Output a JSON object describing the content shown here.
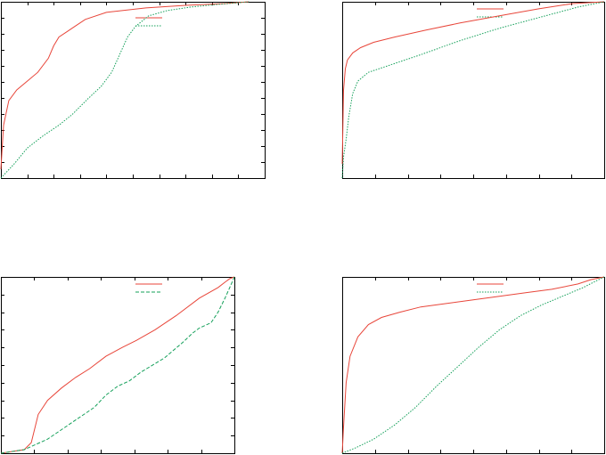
{
  "colors": {
    "series_a": "#e8463a",
    "series_b": "#14a05a",
    "axis": "#000000",
    "background": "#ffffff"
  },
  "chart_data": [
    {
      "type": "line",
      "title": "",
      "xlabel": "",
      "ylabel": "",
      "xlim": [
        0,
        1
      ],
      "ylim": [
        0,
        1
      ],
      "grid": false,
      "legend": "top-right",
      "x_ticks": 9,
      "y_ticks": 10,
      "series": [
        {
          "color": "#e8463a",
          "dash": "solid",
          "x": [
            0,
            0.01,
            0.03,
            0.06,
            0.1,
            0.14,
            0.18,
            0.2,
            0.22,
            0.25,
            0.28,
            0.32,
            0.4,
            0.55,
            0.7,
            0.85,
            0.94
          ],
          "y": [
            0.05,
            0.3,
            0.44,
            0.5,
            0.55,
            0.6,
            0.68,
            0.75,
            0.8,
            0.83,
            0.86,
            0.9,
            0.94,
            0.965,
            0.98,
            0.99,
            1.0
          ]
        },
        {
          "color": "#14a05a",
          "dash": "dotted",
          "x": [
            0,
            0.05,
            0.1,
            0.16,
            0.22,
            0.27,
            0.33,
            0.38,
            0.42,
            0.45,
            0.48,
            0.51,
            0.56,
            0.63,
            0.72,
            0.82,
            0.94
          ],
          "y": [
            0.0,
            0.08,
            0.17,
            0.24,
            0.3,
            0.36,
            0.45,
            0.52,
            0.6,
            0.7,
            0.8,
            0.86,
            0.92,
            0.95,
            0.97,
            0.985,
            1.0
          ]
        }
      ]
    },
    {
      "type": "line",
      "title": "",
      "xlabel": "",
      "ylabel": "",
      "xlim": [
        0,
        1
      ],
      "ylim": [
        0,
        1
      ],
      "grid": false,
      "legend": "top-right",
      "x_ticks": 7,
      "y_ticks": 0,
      "series": [
        {
          "color": "#e8463a",
          "dash": "solid",
          "x": [
            0,
            0.005,
            0.012,
            0.02,
            0.04,
            0.07,
            0.12,
            0.2,
            0.32,
            0.45,
            0.6,
            0.75,
            0.88,
            1.0
          ],
          "y": [
            0.08,
            0.5,
            0.62,
            0.67,
            0.71,
            0.74,
            0.77,
            0.8,
            0.84,
            0.88,
            0.92,
            0.96,
            0.99,
            1.0
          ]
        },
        {
          "color": "#14a05a",
          "dash": "dotted",
          "x": [
            0,
            0.005,
            0.015,
            0.025,
            0.04,
            0.06,
            0.1,
            0.18,
            0.3,
            0.45,
            0.6,
            0.75,
            0.9,
            1.0
          ],
          "y": [
            0.0,
            0.12,
            0.22,
            0.35,
            0.48,
            0.55,
            0.6,
            0.64,
            0.7,
            0.78,
            0.85,
            0.91,
            0.97,
            1.0
          ]
        }
      ]
    },
    {
      "type": "line",
      "title": "",
      "xlabel": "",
      "ylabel": "",
      "xlim": [
        0,
        1
      ],
      "ylim": [
        0,
        1
      ],
      "grid": false,
      "legend": "top-right",
      "x_ticks": 6,
      "y_ticks": 9,
      "series": [
        {
          "color": "#e8463a",
          "dash": "solid",
          "x": [
            0,
            0.05,
            0.1,
            0.13,
            0.16,
            0.2,
            0.26,
            0.32,
            0.38,
            0.45,
            0.52,
            0.58,
            0.66,
            0.75,
            0.85,
            0.93,
            0.96,
            0.98,
            1.0
          ],
          "y": [
            0.0,
            0.01,
            0.02,
            0.06,
            0.22,
            0.3,
            0.37,
            0.43,
            0.48,
            0.55,
            0.6,
            0.64,
            0.7,
            0.78,
            0.88,
            0.94,
            0.97,
            0.99,
            1.0
          ]
        },
        {
          "color": "#14a05a",
          "dash": "dashed",
          "x": [
            0,
            0.1,
            0.2,
            0.3,
            0.4,
            0.45,
            0.5,
            0.55,
            0.6,
            0.7,
            0.78,
            0.82,
            0.85,
            0.9,
            0.93,
            0.96,
            0.98,
            1.0
          ],
          "y": [
            0.0,
            0.02,
            0.08,
            0.17,
            0.26,
            0.33,
            0.38,
            0.41,
            0.46,
            0.54,
            0.63,
            0.68,
            0.71,
            0.74,
            0.8,
            0.88,
            0.94,
            1.0
          ]
        }
      ]
    },
    {
      "type": "line",
      "title": "",
      "xlabel": "",
      "ylabel": "",
      "xlim": [
        0,
        1
      ],
      "ylim": [
        0,
        1
      ],
      "grid": false,
      "legend": "top-right",
      "x_ticks": 7,
      "y_ticks": 0,
      "series": [
        {
          "color": "#e8463a",
          "dash": "solid",
          "x": [
            0,
            0.005,
            0.015,
            0.03,
            0.06,
            0.1,
            0.15,
            0.22,
            0.3,
            0.4,
            0.5,
            0.6,
            0.7,
            0.8,
            0.9,
            0.95,
            1.0
          ],
          "y": [
            0.0,
            0.15,
            0.4,
            0.55,
            0.66,
            0.73,
            0.77,
            0.8,
            0.83,
            0.85,
            0.87,
            0.89,
            0.91,
            0.93,
            0.96,
            0.985,
            1.0
          ]
        },
        {
          "color": "#14a05a",
          "dash": "dotted",
          "x": [
            0,
            0.05,
            0.12,
            0.2,
            0.28,
            0.36,
            0.44,
            0.52,
            0.6,
            0.68,
            0.76,
            0.84,
            0.92,
            0.96,
            1.0
          ],
          "y": [
            0.0,
            0.03,
            0.08,
            0.16,
            0.26,
            0.38,
            0.49,
            0.6,
            0.7,
            0.78,
            0.84,
            0.89,
            0.94,
            0.97,
            1.0
          ]
        }
      ]
    }
  ]
}
